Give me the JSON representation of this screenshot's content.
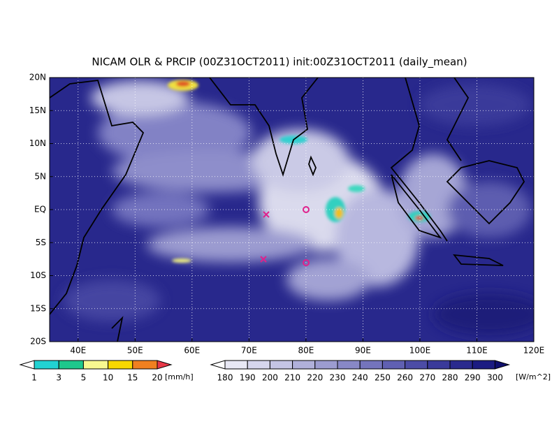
{
  "title": "NICAM OLR & PRCIP (00Z31OCT2011) init:00Z31OCT2011 (daily_mean)",
  "lat_labels": [
    "20N",
    "15N",
    "10N",
    "5N",
    "EQ",
    "5S",
    "10S",
    "15S",
    "20S"
  ],
  "lon_labels": [
    "40E",
    "50E",
    "60E",
    "70E",
    "80E",
    "90E",
    "100E",
    "110E",
    "120E"
  ],
  "precip_colorbar": {
    "labels": [
      "1",
      "3",
      "5",
      "10",
      "15",
      "20"
    ],
    "unit": "[mm/h]"
  },
  "olr_colorbar": {
    "labels": [
      "180",
      "190",
      "200",
      "210",
      "220",
      "230",
      "240",
      "250",
      "260",
      "270",
      "280",
      "290",
      "300"
    ],
    "unit": "[W/m^2]"
  }
}
